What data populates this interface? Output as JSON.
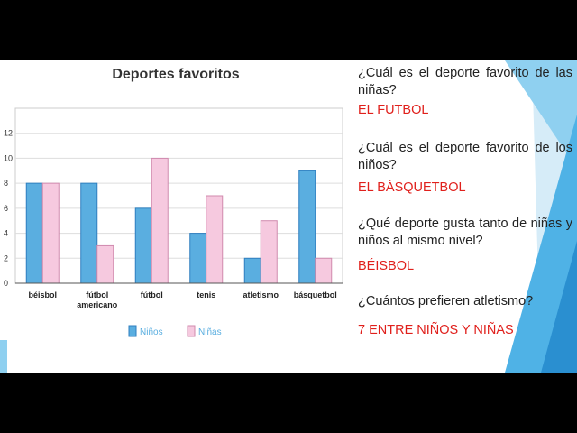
{
  "chart_data": {
    "type": "bar",
    "title": "Deportes favoritos",
    "categories": [
      "béisbol",
      "fútbol americano",
      "fútbol",
      "tenis",
      "atletismo",
      "básquetbol"
    ],
    "series": [
      {
        "name": "Niños",
        "color": "#5aaee0",
        "values": [
          8,
          8,
          6,
          4,
          2,
          9
        ]
      },
      {
        "name": "Niñas",
        "color": "#f6c9df",
        "values": [
          8,
          3,
          10,
          7,
          5,
          2
        ]
      }
    ],
    "ylim": [
      0,
      14
    ],
    "yticks": [
      0,
      2,
      4,
      6,
      8,
      10,
      12
    ],
    "grid": true
  },
  "qa": [
    {
      "question": "¿Cuál es el deporte favorito de las niñas?",
      "answer": "EL FUTBOL"
    },
    {
      "question": "¿Cuál es el deporte favorito de los niños?",
      "answer": "EL BÁSQUETBOL"
    },
    {
      "question": "¿Qué deporte gusta tanto de niñas y niños al mismo nivel?",
      "answer": "BÉISBOL"
    },
    {
      "question": "¿Cuántos prefieren atletismo?",
      "answer": "7 ENTRE NIÑOS Y NIÑAS"
    }
  ]
}
